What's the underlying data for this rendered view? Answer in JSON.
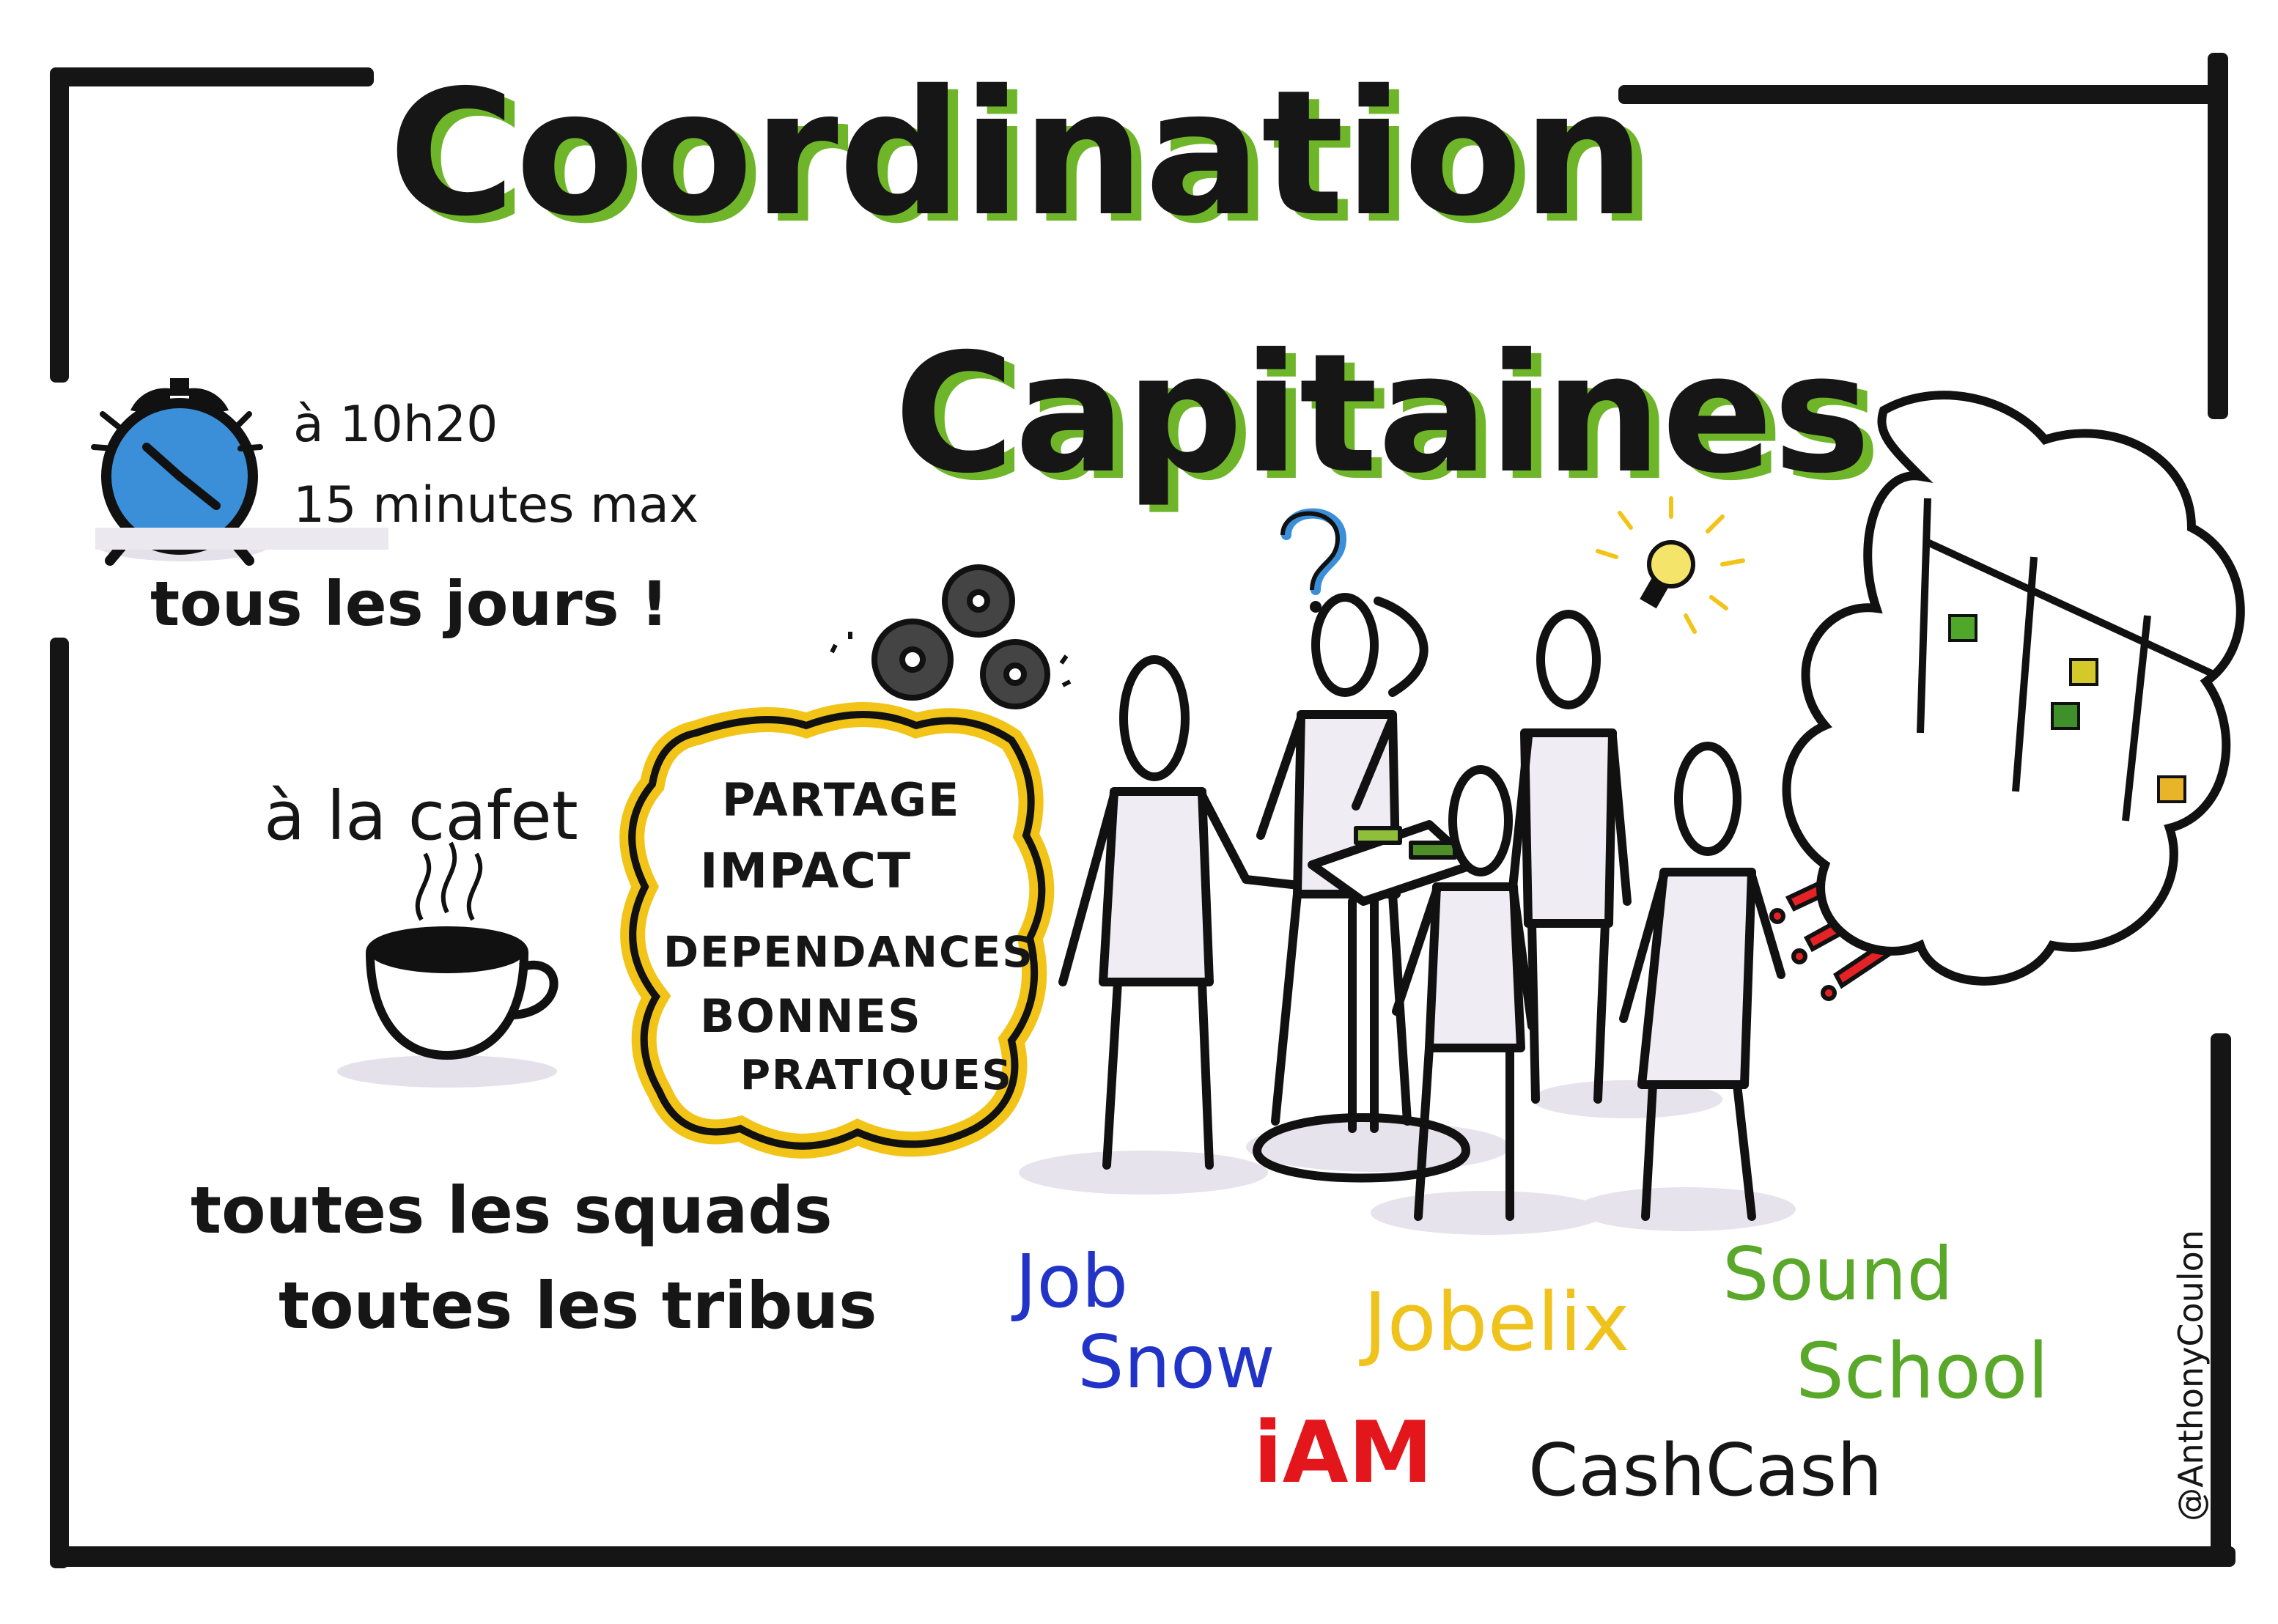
{
  "title": {
    "line1": "Coordination",
    "line2": "Capitaines"
  },
  "schedule": {
    "time": "à 10h20",
    "duration": "15 minutes max",
    "frequency": "tous les jours !"
  },
  "location": "à la cafet",
  "topics": [
    "PARTAGE",
    "IMPACT",
    "DEPENDANCES",
    "BONNES",
    "PRATIQUES"
  ],
  "audience": {
    "line1": "toutes les squads",
    "line2": "toutes les tribus"
  },
  "teams": {
    "job_snow_1": "Job",
    "job_snow_2": "Snow",
    "jobelix": "Jobelix",
    "sound_school_1": "Sound",
    "sound_school_2": "School",
    "iam": "iAM",
    "cashcash": "CashCash"
  },
  "credit": "@AnthonyCoulon",
  "colors": {
    "accent_green": "#6fb52a",
    "ink": "#161616",
    "clock_blue": "#3a8fd8",
    "highlight_yellow": "#f2c418",
    "alert_red": "#e52226",
    "team_blue": "#2233c8",
    "team_yellow": "#f0c21c",
    "team_green": "#5aa82a",
    "team_red": "#e3161c"
  },
  "icons": [
    "alarm-clock-icon",
    "gears-icon",
    "question-mark-icon",
    "lightbulb-icon",
    "coffee-cup-icon",
    "exclamation-icon",
    "thought-cloud-icon"
  ]
}
